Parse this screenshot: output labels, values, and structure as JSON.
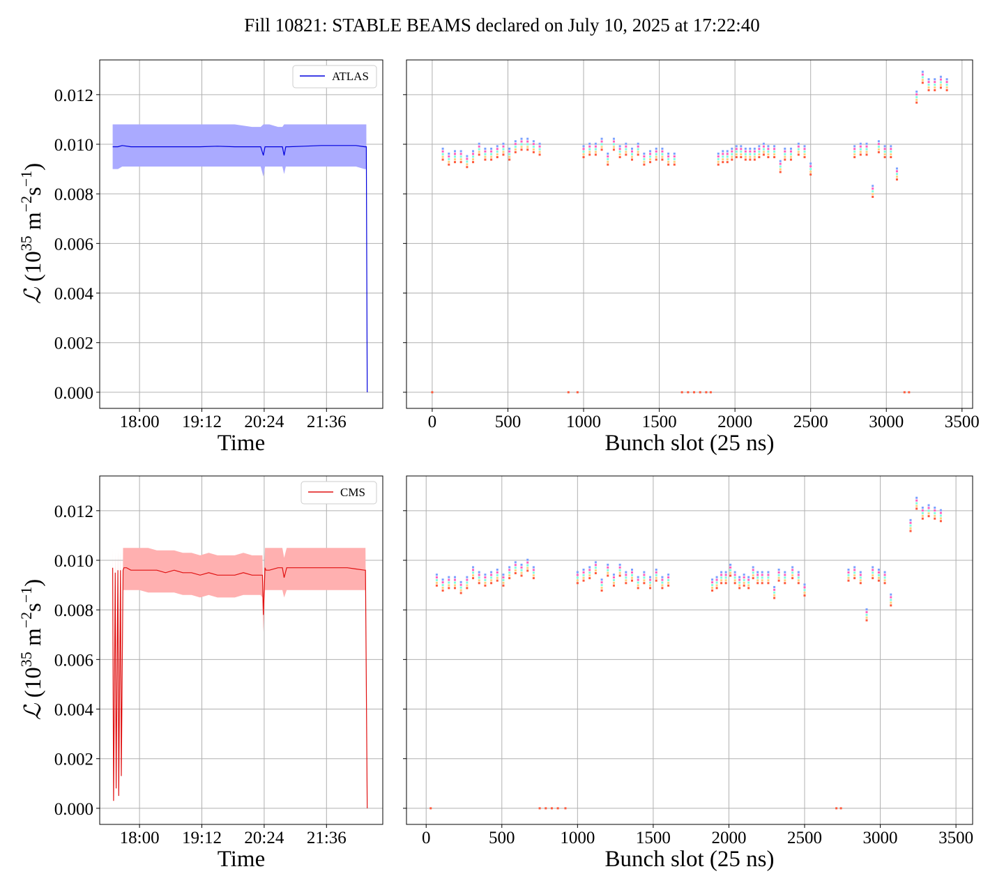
{
  "title": "Fill 10821: STABLE BEAMS declared on July 10, 2025 at 17:22:40",
  "colors": {
    "atlas_line": "#0000dd",
    "atlas_band": "#aaaaff",
    "cms_line": "#e01010",
    "cms_band": "#ffb0b0",
    "grid": "#b0b0b0",
    "bunch_colors": [
      "#7aa0ff",
      "#ff60c0",
      "#80ffe0",
      "#ffd080",
      "#ff5a3c"
    ]
  },
  "chart_data": [
    {
      "type": "line",
      "experiment": "ATLAS",
      "legend": "ATLAS",
      "xlabel": "Time",
      "ylabel": "L (10^35 m^-2 s^-1)",
      "ylabel_parts": {
        "symbol": "ℒ",
        "open": " (10",
        "exp1": "35",
        "mid": " m",
        "exp2": "−2",
        "mid2": "s",
        "exp3": "−1",
        "close": ")"
      },
      "x_ticks": [
        "18:00",
        "19:12",
        "20:24",
        "21:36"
      ],
      "x_tick_minutes": [
        1080,
        1152,
        1224,
        1296
      ],
      "xlim_minutes": [
        1034,
        1361
      ],
      "y_ticks": [
        "0.000",
        "0.002",
        "0.004",
        "0.006",
        "0.008",
        "0.010",
        "0.012"
      ],
      "ylim": [
        -0.00065,
        0.0134
      ],
      "grid": true,
      "legend_position": "upper right",
      "series": [
        {
          "name": "ATLAS",
          "x_minutes": [
            1049,
            1055,
            1060,
            1070,
            1090,
            1110,
            1130,
            1150,
            1170,
            1190,
            1210,
            1220,
            1223,
            1225,
            1227,
            1230,
            1240,
            1245,
            1247,
            1249,
            1252,
            1270,
            1290,
            1310,
            1330,
            1340,
            1342,
            1343
          ],
          "y": [
            0.0099,
            0.0099,
            0.00995,
            0.0099,
            0.0099,
            0.0099,
            0.0099,
            0.0099,
            0.00992,
            0.0099,
            0.0099,
            0.0099,
            0.00955,
            0.0099,
            0.0099,
            0.0099,
            0.0099,
            0.0099,
            0.00955,
            0.0099,
            0.0099,
            0.00992,
            0.00995,
            0.00995,
            0.00995,
            0.0099,
            0.0099,
            0.0
          ],
          "band_upper": [
            0.0108,
            0.0108,
            0.0108,
            0.0108,
            0.0108,
            0.0108,
            0.0108,
            0.0108,
            0.0108,
            0.0108,
            0.0107,
            0.0107,
            0.0108,
            0.0108,
            0.0108,
            0.0108,
            0.0107,
            0.0107,
            0.0108,
            0.0108,
            0.0108,
            0.0108,
            0.0108,
            0.0108,
            0.0108,
            0.0108,
            0.0108,
            0.0
          ],
          "band_lower": [
            0.009,
            0.009,
            0.0091,
            0.0091,
            0.0091,
            0.0091,
            0.0091,
            0.0091,
            0.0091,
            0.0091,
            0.0091,
            0.0091,
            0.0087,
            0.0091,
            0.0091,
            0.0091,
            0.0091,
            0.0091,
            0.0088,
            0.0091,
            0.0091,
            0.0091,
            0.0091,
            0.0091,
            0.0091,
            0.009,
            0.009,
            0.0
          ]
        }
      ]
    },
    {
      "type": "scatter",
      "experiment": "ATLAS",
      "xlabel": "Bunch slot (25 ns)",
      "x_ticks": [
        "0",
        "500",
        "1000",
        "1500",
        "2000",
        "2500",
        "3000",
        "3500"
      ],
      "xlim": [
        -170,
        3570
      ],
      "ylim": [
        -0.00065,
        0.0134
      ],
      "grid": true,
      "groups": [
        {
          "x": [
            0
          ],
          "y": [
            0.0
          ]
        },
        {
          "x": [
            70,
            110,
            150,
            190,
            230,
            270,
            310,
            350,
            390,
            430,
            470,
            510,
            550,
            590,
            630,
            670,
            710
          ],
          "y": [
            0.0096,
            0.0094,
            0.0095,
            0.0095,
            0.0093,
            0.0095,
            0.0098,
            0.0096,
            0.0096,
            0.0097,
            0.0098,
            0.0096,
            0.0099,
            0.01,
            0.01,
            0.0099,
            0.0098
          ]
        },
        {
          "x": [
            900,
            960
          ],
          "y": [
            0.0,
            0.0
          ]
        },
        {
          "x": [
            1000,
            1040,
            1080,
            1120,
            1160,
            1200,
            1240,
            1280,
            1320,
            1360,
            1400,
            1440,
            1480,
            1520,
            1560,
            1600
          ],
          "y": [
            0.0097,
            0.0098,
            0.0098,
            0.01,
            0.0094,
            0.01,
            0.0097,
            0.0098,
            0.0096,
            0.0098,
            0.0094,
            0.0095,
            0.0096,
            0.0096,
            0.0094,
            0.0094
          ]
        },
        {
          "x": [
            1650,
            1690,
            1730,
            1770,
            1810,
            1840
          ],
          "y": [
            0.0,
            0.0,
            0.0,
            0.0,
            0.0,
            0.0
          ]
        },
        {
          "x": [
            1890,
            1920,
            1950,
            1980,
            2010,
            2040,
            2070,
            2100,
            2130,
            2160,
            2190,
            2220,
            2260,
            2300,
            2330,
            2370,
            2420,
            2460,
            2500
          ],
          "y": [
            0.0094,
            0.0095,
            0.0095,
            0.0096,
            0.0097,
            0.0097,
            0.0096,
            0.0096,
            0.0096,
            0.0097,
            0.0098,
            0.0097,
            0.0097,
            0.0091,
            0.0096,
            0.0096,
            0.0098,
            0.0097,
            0.009
          ]
        },
        {
          "x": [
            2790,
            2830,
            2870,
            2910,
            2950,
            2990,
            3030,
            3070
          ],
          "y": [
            0.0097,
            0.0098,
            0.0098,
            0.0081,
            0.0099,
            0.0097,
            0.0097,
            0.0088
          ]
        },
        {
          "x": [
            3120,
            3150
          ],
          "y": [
            0.0,
            0.0
          ]
        },
        {
          "x": [
            3200,
            3240,
            3280,
            3320,
            3360,
            3400
          ],
          "y": [
            0.0119,
            0.0127,
            0.0124,
            0.0124,
            0.0125,
            0.0124
          ]
        }
      ]
    },
    {
      "type": "line",
      "experiment": "CMS",
      "legend": "CMS",
      "xlabel": "Time",
      "ylabel": "L (10^35 m^-2 s^-1)",
      "ylabel_parts": {
        "symbol": "ℒ",
        "open": " (10",
        "exp1": "35",
        "mid": " m",
        "exp2": "−2",
        "mid2": "s",
        "exp3": "−1",
        "close": ")"
      },
      "x_ticks": [
        "18:00",
        "19:12",
        "20:24",
        "21:36"
      ],
      "x_tick_minutes": [
        1080,
        1152,
        1224,
        1296
      ],
      "xlim_minutes": [
        1034,
        1361
      ],
      "y_ticks": [
        "0.000",
        "0.002",
        "0.004",
        "0.006",
        "0.008",
        "0.010",
        "0.012"
      ],
      "ylim": [
        -0.00065,
        0.0134
      ],
      "grid": true,
      "legend_position": "upper right",
      "series": [
        {
          "name": "CMS",
          "x_minutes": [
            1049,
            1050,
            1052,
            1053,
            1055,
            1056,
            1058,
            1059,
            1061,
            1062,
            1065,
            1070,
            1080,
            1090,
            1100,
            1110,
            1120,
            1130,
            1140,
            1150,
            1160,
            1170,
            1180,
            1190,
            1200,
            1210,
            1220,
            1222,
            1223,
            1225,
            1226,
            1230,
            1240,
            1245,
            1247,
            1250,
            1260,
            1280,
            1300,
            1320,
            1340,
            1341,
            1343
          ],
          "y": [
            0.0097,
            0.0003,
            0.0095,
            0.0008,
            0.0096,
            0.0005,
            0.0096,
            0.0013,
            0.0096,
            0.0097,
            0.0097,
            0.0096,
            0.0096,
            0.0096,
            0.0096,
            0.0095,
            0.0096,
            0.0095,
            0.0095,
            0.0094,
            0.0095,
            0.0094,
            0.0094,
            0.0094,
            0.0095,
            0.0094,
            0.0094,
            0.0094,
            0.0078,
            0.0097,
            0.0096,
            0.0096,
            0.0097,
            0.0097,
            0.0093,
            0.0097,
            0.0097,
            0.0097,
            0.0097,
            0.0097,
            0.0096,
            0.0096,
            0.0
          ],
          "band_upper": [
            0.0105,
            0.0003,
            0.0103,
            0.0008,
            0.0104,
            0.0005,
            0.0104,
            0.0013,
            0.0105,
            0.0105,
            0.0105,
            0.0105,
            0.0105,
            0.0105,
            0.0104,
            0.0104,
            0.0104,
            0.0103,
            0.0103,
            0.0102,
            0.0103,
            0.0102,
            0.0102,
            0.0102,
            0.0103,
            0.0102,
            0.0102,
            0.0102,
            0.0086,
            0.0105,
            0.0105,
            0.0105,
            0.0105,
            0.0105,
            0.0101,
            0.0105,
            0.0105,
            0.0105,
            0.0105,
            0.0105,
            0.0105,
            0.0105,
            0.0
          ],
          "band_lower": [
            0.0089,
            0.0003,
            0.0087,
            0.0008,
            0.0088,
            0.0005,
            0.0088,
            0.0013,
            0.0088,
            0.0088,
            0.0088,
            0.0088,
            0.0088,
            0.0087,
            0.0087,
            0.0087,
            0.0087,
            0.0086,
            0.0086,
            0.0085,
            0.0086,
            0.0085,
            0.0085,
            0.0085,
            0.0086,
            0.0086,
            0.0086,
            0.0085,
            0.0071,
            0.0088,
            0.0088,
            0.0088,
            0.0088,
            0.0088,
            0.0085,
            0.0088,
            0.0088,
            0.0088,
            0.0088,
            0.0088,
            0.0088,
            0.0088,
            0.0
          ]
        }
      ]
    },
    {
      "type": "scatter",
      "experiment": "CMS",
      "xlabel": "Bunch slot (25 ns)",
      "x_ticks": [
        "0",
        "500",
        "1000",
        "1500",
        "2000",
        "2500",
        "3000",
        "3500"
      ],
      "xlim": [
        -130,
        3610
      ],
      "ylim": [
        -0.00065,
        0.0134
      ],
      "grid": true,
      "groups": [
        {
          "x": [
            30
          ],
          "y": [
            0.0
          ]
        },
        {
          "x": [
            70,
            110,
            150,
            190,
            230,
            270,
            310,
            350,
            390,
            430,
            470,
            510,
            550,
            590,
            630,
            670,
            710
          ],
          "y": [
            0.0092,
            0.009,
            0.0091,
            0.0091,
            0.0089,
            0.0091,
            0.0095,
            0.0093,
            0.0092,
            0.0093,
            0.0094,
            0.0092,
            0.0095,
            0.0097,
            0.0096,
            0.0098,
            0.0095
          ]
        },
        {
          "x": [
            750,
            790,
            830,
            870,
            920
          ],
          "y": [
            0.0,
            0.0,
            0.0,
            0.0,
            0.0
          ]
        },
        {
          "x": [
            1000,
            1040,
            1080,
            1120,
            1160,
            1200,
            1240,
            1280,
            1320,
            1360,
            1400,
            1440,
            1480,
            1520,
            1560,
            1600
          ],
          "y": [
            0.0093,
            0.0094,
            0.0095,
            0.0097,
            0.009,
            0.0096,
            0.0092,
            0.0096,
            0.0093,
            0.0094,
            0.0091,
            0.0093,
            0.0091,
            0.0094,
            0.0091,
            0.0092
          ]
        },
        {
          "x": [
            1890,
            1920,
            1950,
            1980,
            2010,
            2040,
            2070,
            2100,
            2130,
            2160,
            2190,
            2220,
            2260,
            2300,
            2330,
            2370,
            2420,
            2460,
            2500
          ],
          "y": [
            0.009,
            0.0091,
            0.0093,
            0.0093,
            0.0096,
            0.0093,
            0.0091,
            0.0092,
            0.0091,
            0.0095,
            0.0093,
            0.0093,
            0.0093,
            0.0087,
            0.0094,
            0.0093,
            0.0095,
            0.0093,
            0.0088
          ]
        },
        {
          "x": [
            2710,
            2740
          ],
          "y": [
            0.0,
            0.0
          ]
        },
        {
          "x": [
            2790,
            2830,
            2870,
            2910,
            2950,
            2990,
            3030,
            3070
          ],
          "y": [
            0.0094,
            0.0095,
            0.0093,
            0.0078,
            0.0095,
            0.0094,
            0.0093,
            0.0084
          ]
        },
        {
          "x": [
            3200,
            3240,
            3280,
            3320,
            3360,
            3400
          ],
          "y": [
            0.0114,
            0.0123,
            0.0119,
            0.012,
            0.0119,
            0.0118
          ]
        }
      ]
    }
  ]
}
